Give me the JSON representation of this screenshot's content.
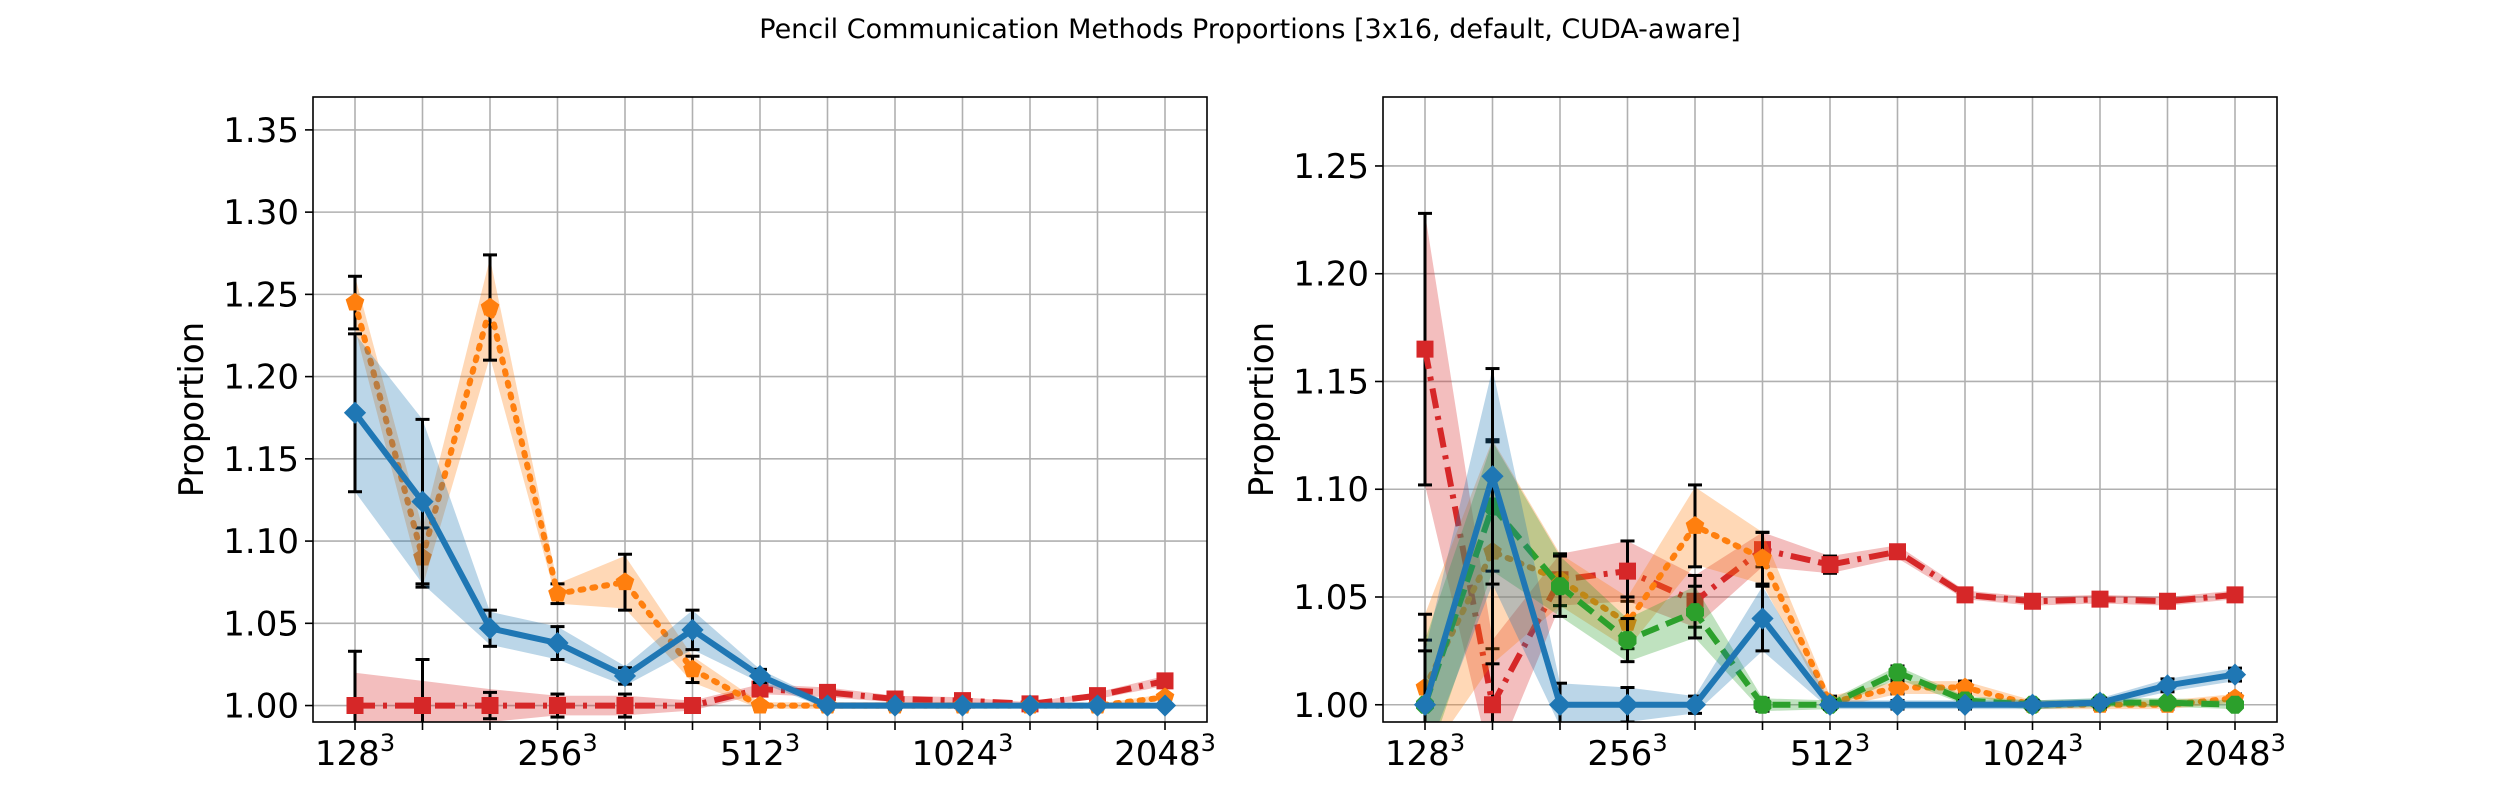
{
  "figure": {
    "suptitle": "Pencil Communication Methods Proportions [3x16, default, CUDA-aware]"
  },
  "chart_data": [
    {
      "type": "line",
      "ylabel": "Proportion",
      "xlabel": "",
      "ylim": [
        0.99,
        1.37
      ],
      "yticks": [
        1.0,
        1.05,
        1.1,
        1.15,
        1.2,
        1.25,
        1.3,
        1.35
      ],
      "x_categories": [
        "128³",
        "",
        "",
        "256³",
        "",
        "",
        "512³",
        "",
        "",
        "1024³",
        "",
        "",
        "2048³"
      ],
      "xtick_labels": [
        {
          "index": 0,
          "base": "128",
          "exp": "3"
        },
        {
          "index": 3,
          "base": "256",
          "exp": "3"
        },
        {
          "index": 6,
          "base": "512",
          "exp": "3"
        },
        {
          "index": 9,
          "base": "1024",
          "exp": "3"
        },
        {
          "index": 12,
          "base": "2048",
          "exp": "3"
        }
      ],
      "grid": true,
      "series": [
        {
          "color": "#d62728",
          "dash": "dashdot",
          "marker": "square",
          "values": [
            1.0,
            1.0,
            1.0,
            1.0,
            1.0,
            1.0,
            1.01,
            1.008,
            1.004,
            1.003,
            1.001,
            1.006,
            1.015
          ],
          "band": [
            0.02,
            0.015,
            0.01,
            0.006,
            0.006,
            0.003,
            0.003,
            0.003,
            0.002,
            0.002,
            0.001,
            0.002,
            0.003
          ],
          "errors": [
            0.033,
            0.028,
            0.008,
            0.007,
            0.007,
            0.003,
            0.003,
            0.003,
            0.002,
            0.002,
            0.001,
            0.002,
            0.003
          ]
        },
        {
          "color": "#ff7f0e",
          "dash": "dotted",
          "marker": "pentagon",
          "values": [
            1.245,
            1.09,
            1.242,
            1.068,
            1.075,
            1.022,
            1.0,
            1.0,
            1.0,
            1.0,
            1.0,
            1.0,
            1.005
          ],
          "band": [
            0.016,
            0.018,
            0.03,
            0.006,
            0.016,
            0.008,
            0.002,
            0.002,
            0.002,
            0.002,
            0.001,
            0.001,
            0.002
          ],
          "errors": [
            0.016,
            0.018,
            0.032,
            0.006,
            0.017,
            0.008,
            0.002,
            0.002,
            0.002,
            0.002,
            0.001,
            0.001,
            0.002
          ]
        },
        {
          "color": "#1f77b4",
          "dash": "solid",
          "marker": "diamond",
          "values": [
            1.178,
            1.124,
            1.047,
            1.038,
            1.018,
            1.046,
            1.018,
            1.0,
            1.0,
            1.0,
            1.0,
            1.0,
            1.0
          ],
          "band": [
            0.048,
            0.05,
            0.01,
            0.01,
            0.006,
            0.012,
            0.004,
            0.002,
            0.002,
            0.001,
            0.001,
            0.001,
            0.001
          ],
          "errors": [
            0.048,
            0.05,
            0.011,
            0.01,
            0.005,
            0.012,
            0.004,
            0.002,
            0.002,
            0.001,
            0.001,
            0.001,
            0.001
          ]
        }
      ]
    },
    {
      "type": "line",
      "ylabel": "Proportion",
      "xlabel": "",
      "ylim": [
        0.992,
        1.282
      ],
      "yticks": [
        1.0,
        1.05,
        1.1,
        1.15,
        1.2,
        1.25
      ],
      "x_categories": [
        "128³",
        "",
        "",
        "256³",
        "",
        "",
        "512³",
        "",
        "",
        "1024³",
        "",
        "",
        "2048³"
      ],
      "xtick_labels": [
        {
          "index": 0,
          "base": "128",
          "exp": "3"
        },
        {
          "index": 3,
          "base": "256",
          "exp": "3"
        },
        {
          "index": 6,
          "base": "512",
          "exp": "3"
        },
        {
          "index": 9,
          "base": "1024",
          "exp": "3"
        },
        {
          "index": 12,
          "base": "2048",
          "exp": "3"
        }
      ],
      "grid": true,
      "series": [
        {
          "color": "#d62728",
          "dash": "dashdot",
          "marker": "square",
          "values": [
            1.165,
            1.0,
            1.058,
            1.062,
            1.048,
            1.072,
            1.065,
            1.071,
            1.051,
            1.048,
            1.049,
            1.048,
            1.051
          ],
          "band": [
            0.063,
            0.03,
            0.012,
            0.014,
            0.012,
            0.008,
            0.004,
            0.003,
            0.002,
            0.002,
            0.002,
            0.002,
            0.002
          ],
          "errors": [
            0.063,
            0.026,
            0.012,
            0.014,
            0.012,
            0.008,
            0.004,
            0.003,
            0.002,
            0.002,
            0.002,
            0.002,
            0.002
          ]
        },
        {
          "color": "#ff7f0e",
          "dash": "dotted",
          "marker": "pentagon",
          "values": [
            1.008,
            1.071,
            1.058,
            1.038,
            1.083,
            1.068,
            1.001,
            1.008,
            1.008,
            1.0,
            1.0,
            1.0,
            1.003
          ],
          "band": [
            0.034,
            0.052,
            0.012,
            0.012,
            0.018,
            0.012,
            0.003,
            0.003,
            0.003,
            0.002,
            0.002,
            0.002,
            0.002
          ],
          "errors": [
            0.034,
            0.052,
            0.012,
            0.012,
            0.019,
            0.012,
            0.003,
            0.003,
            0.003,
            0.002,
            0.002,
            0.002,
            0.002
          ]
        },
        {
          "color": "#2ca02c",
          "dash": "dashed",
          "marker": "octagon",
          "values": [
            1.0,
            1.092,
            1.055,
            1.03,
            1.043,
            1.0,
            1.0,
            1.015,
            1.002,
            1.0,
            1.001,
            1.001,
            1.0
          ],
          "band": [
            0.03,
            0.03,
            0.014,
            0.01,
            0.012,
            0.003,
            0.002,
            0.003,
            0.002,
            0.002,
            0.002,
            0.002,
            0.002
          ],
          "errors": [
            0.03,
            0.03,
            0.014,
            0.01,
            0.012,
            0.003,
            0.002,
            0.003,
            0.002,
            0.002,
            0.002,
            0.002,
            0.002
          ]
        },
        {
          "color": "#1f77b4",
          "dash": "solid",
          "marker": "diamond",
          "values": [
            1.0,
            1.106,
            1.0,
            1.0,
            1.0,
            1.04,
            1.0,
            1.0,
            1.0,
            1.0,
            1.001,
            1.009,
            1.014
          ],
          "band": [
            0.025,
            0.05,
            0.01,
            0.008,
            0.004,
            0.015,
            0.002,
            0.002,
            0.002,
            0.002,
            0.002,
            0.003,
            0.003
          ],
          "errors": [
            0.025,
            0.05,
            0.01,
            0.008,
            0.004,
            0.015,
            0.002,
            0.002,
            0.002,
            0.002,
            0.002,
            0.003,
            0.003
          ]
        }
      ]
    }
  ]
}
